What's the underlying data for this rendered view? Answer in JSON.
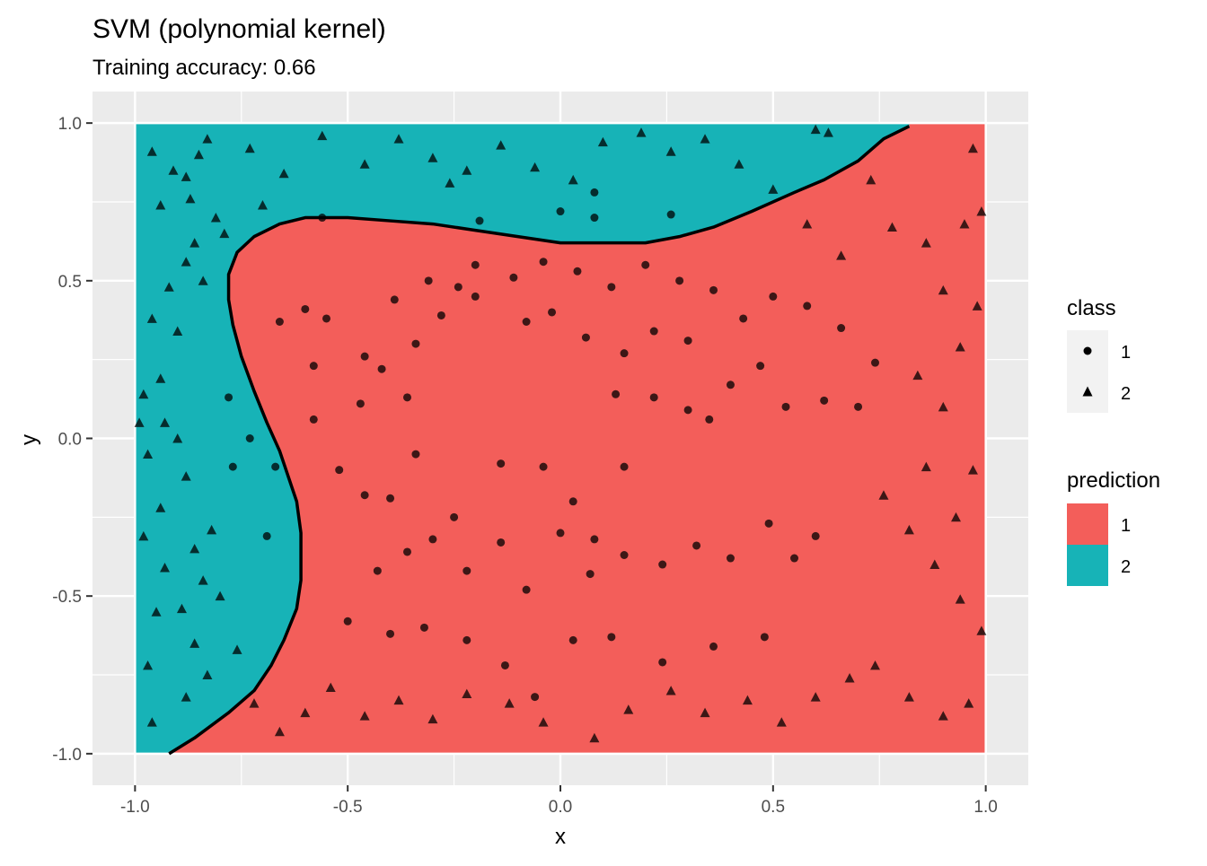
{
  "chart_data": {
    "type": "scatter",
    "title": "SVM (polynomial kernel)",
    "subtitle": "Training accuracy: 0.66",
    "xlabel": "x",
    "ylabel": "y",
    "xlim": [
      -1.1,
      1.1
    ],
    "ylim": [
      -1.1,
      1.1
    ],
    "xticks": [
      -1.0,
      -0.5,
      0.0,
      0.5,
      1.0
    ],
    "xtick_labels": [
      "-1.0",
      "-0.5",
      "0.0",
      "0.5",
      "1.0"
    ],
    "yticks": [
      -1.0,
      -0.5,
      0.0,
      0.5,
      1.0
    ],
    "ytick_labels": [
      "-1.0",
      "-0.5",
      "0.0",
      "0.5",
      "1.0"
    ],
    "grid": true,
    "legend_position": "right",
    "legends": {
      "class": {
        "title": "class",
        "entries": [
          {
            "label": "1",
            "shape": "circle"
          },
          {
            "label": "2",
            "shape": "triangle"
          }
        ]
      },
      "prediction": {
        "title": "prediction",
        "entries": [
          {
            "label": "1",
            "color": "#F35E5A"
          },
          {
            "label": "2",
            "color": "#17B3B7"
          }
        ]
      }
    },
    "colors": {
      "prediction_1": "#F35E5A",
      "prediction_2": "#17B3B7",
      "panel_background": "#EBEBEB",
      "grid": "#FFFFFF",
      "points": "#000000"
    },
    "decision_boundary": [
      [
        -0.92,
        -1.0
      ],
      [
        -0.86,
        -0.95
      ],
      [
        -0.78,
        -0.87
      ],
      [
        -0.72,
        -0.8
      ],
      [
        -0.68,
        -0.72
      ],
      [
        -0.65,
        -0.64
      ],
      [
        -0.62,
        -0.54
      ],
      [
        -0.61,
        -0.45
      ],
      [
        -0.61,
        -0.3
      ],
      [
        -0.62,
        -0.2
      ],
      [
        -0.64,
        -0.12
      ],
      [
        -0.66,
        -0.04
      ],
      [
        -0.69,
        0.05
      ],
      [
        -0.72,
        0.15
      ],
      [
        -0.75,
        0.26
      ],
      [
        -0.77,
        0.36
      ],
      [
        -0.78,
        0.44
      ],
      [
        -0.78,
        0.52
      ],
      [
        -0.76,
        0.59
      ],
      [
        -0.72,
        0.64
      ],
      [
        -0.66,
        0.68
      ],
      [
        -0.6,
        0.7
      ],
      [
        -0.5,
        0.7
      ],
      [
        -0.4,
        0.69
      ],
      [
        -0.3,
        0.68
      ],
      [
        -0.2,
        0.66
      ],
      [
        -0.1,
        0.64
      ],
      [
        0.0,
        0.62
      ],
      [
        0.1,
        0.62
      ],
      [
        0.2,
        0.62
      ],
      [
        0.28,
        0.64
      ],
      [
        0.36,
        0.67
      ],
      [
        0.45,
        0.72
      ],
      [
        0.55,
        0.78
      ],
      [
        0.62,
        0.82
      ],
      [
        0.7,
        0.88
      ],
      [
        0.76,
        0.95
      ],
      [
        0.82,
        0.99
      ]
    ],
    "series": [
      {
        "name": "1",
        "shape": "circle",
        "points": [
          [
            -0.66,
            0.37
          ],
          [
            -0.6,
            0.41
          ],
          [
            -0.55,
            0.38
          ],
          [
            -0.58,
            0.23
          ],
          [
            -0.46,
            0.26
          ],
          [
            -0.42,
            0.22
          ],
          [
            -0.34,
            0.3
          ],
          [
            -0.39,
            0.44
          ],
          [
            -0.31,
            0.5
          ],
          [
            -0.24,
            0.48
          ],
          [
            -0.28,
            0.39
          ],
          [
            -0.2,
            0.45
          ],
          [
            -0.36,
            0.13
          ],
          [
            -0.47,
            0.11
          ],
          [
            -0.58,
            0.06
          ],
          [
            -0.52,
            -0.1
          ],
          [
            -0.46,
            -0.18
          ],
          [
            -0.4,
            -0.19
          ],
          [
            -0.34,
            -0.05
          ],
          [
            -0.25,
            -0.25
          ],
          [
            -0.14,
            -0.08
          ],
          [
            -0.04,
            -0.09
          ],
          [
            0.03,
            -0.2
          ],
          [
            0.08,
            -0.32
          ],
          [
            0.15,
            -0.09
          ],
          [
            0.13,
            0.14
          ],
          [
            0.22,
            0.13
          ],
          [
            0.3,
            0.09
          ],
          [
            0.35,
            0.06
          ],
          [
            0.4,
            0.17
          ],
          [
            0.47,
            0.23
          ],
          [
            0.53,
            0.1
          ],
          [
            0.62,
            0.12
          ],
          [
            0.7,
            0.1
          ],
          [
            0.74,
            0.24
          ],
          [
            0.66,
            0.35
          ],
          [
            0.58,
            0.42
          ],
          [
            0.5,
            0.45
          ],
          [
            0.43,
            0.38
          ],
          [
            0.36,
            0.47
          ],
          [
            0.28,
            0.5
          ],
          [
            0.2,
            0.55
          ],
          [
            0.12,
            0.48
          ],
          [
            0.04,
            0.53
          ],
          [
            -0.04,
            0.56
          ],
          [
            -0.11,
            0.51
          ],
          [
            -0.08,
            0.37
          ],
          [
            -0.02,
            0.4
          ],
          [
            0.06,
            0.32
          ],
          [
            0.15,
            0.27
          ],
          [
            0.22,
            0.34
          ],
          [
            0.3,
            0.31
          ],
          [
            -0.43,
            -0.42
          ],
          [
            -0.36,
            -0.36
          ],
          [
            -0.3,
            -0.32
          ],
          [
            -0.22,
            -0.42
          ],
          [
            -0.14,
            -0.33
          ],
          [
            -0.08,
            -0.48
          ],
          [
            0.0,
            -0.3
          ],
          [
            0.07,
            -0.43
          ],
          [
            0.15,
            -0.37
          ],
          [
            0.24,
            -0.4
          ],
          [
            0.32,
            -0.34
          ],
          [
            0.4,
            -0.38
          ],
          [
            0.49,
            -0.27
          ],
          [
            0.55,
            -0.38
          ],
          [
            0.6,
            -0.31
          ],
          [
            -0.5,
            -0.58
          ],
          [
            -0.4,
            -0.62
          ],
          [
            -0.32,
            -0.6
          ],
          [
            -0.22,
            -0.64
          ],
          [
            -0.13,
            -0.72
          ],
          [
            -0.06,
            -0.82
          ],
          [
            0.03,
            -0.64
          ],
          [
            0.12,
            -0.63
          ],
          [
            0.24,
            -0.71
          ],
          [
            0.36,
            -0.66
          ],
          [
            0.48,
            -0.63
          ],
          [
            -0.2,
            0.55
          ],
          [
            -0.56,
            0.7
          ],
          [
            0.08,
            0.7
          ],
          [
            0.26,
            0.71
          ],
          [
            0.0,
            0.72
          ],
          [
            0.08,
            0.78
          ],
          [
            -0.19,
            0.69
          ],
          [
            -0.78,
            0.13
          ],
          [
            -0.77,
            -0.09
          ],
          [
            -0.69,
            -0.31
          ],
          [
            -0.67,
            -0.09
          ],
          [
            -0.73,
            0.0
          ]
        ]
      },
      {
        "name": "2",
        "shape": "triangle",
        "points": [
          [
            -0.96,
            0.91
          ],
          [
            -0.91,
            0.85
          ],
          [
            -0.94,
            0.74
          ],
          [
            -0.88,
            0.83
          ],
          [
            -0.85,
            0.9
          ],
          [
            -0.83,
            0.95
          ],
          [
            -0.87,
            0.76
          ],
          [
            -0.81,
            0.7
          ],
          [
            -0.79,
            0.65
          ],
          [
            -0.86,
            0.62
          ],
          [
            -0.84,
            0.5
          ],
          [
            -0.88,
            0.56
          ],
          [
            -0.92,
            0.48
          ],
          [
            -0.96,
            0.38
          ],
          [
            -0.9,
            0.34
          ],
          [
            -0.94,
            0.19
          ],
          [
            -0.98,
            0.14
          ],
          [
            -0.93,
            0.05
          ],
          [
            -0.99,
            0.05
          ],
          [
            -0.97,
            -0.05
          ],
          [
            -0.9,
            0.0
          ],
          [
            -0.88,
            -0.12
          ],
          [
            -0.94,
            -0.22
          ],
          [
            -0.98,
            -0.31
          ],
          [
            -0.93,
            -0.41
          ],
          [
            -0.86,
            -0.35
          ],
          [
            -0.82,
            -0.29
          ],
          [
            -0.84,
            -0.45
          ],
          [
            -0.89,
            -0.54
          ],
          [
            -0.95,
            -0.55
          ],
          [
            -0.97,
            -0.72
          ],
          [
            -0.86,
            -0.65
          ],
          [
            -0.8,
            -0.5
          ],
          [
            -0.76,
            -0.67
          ],
          [
            -0.83,
            -0.75
          ],
          [
            -0.88,
            -0.82
          ],
          [
            -0.96,
            -0.9
          ],
          [
            -0.72,
            -0.84
          ],
          [
            -0.66,
            -0.93
          ],
          [
            -0.6,
            -0.87
          ],
          [
            -0.54,
            -0.79
          ],
          [
            -0.46,
            -0.88
          ],
          [
            -0.38,
            -0.83
          ],
          [
            -0.3,
            -0.89
          ],
          [
            -0.22,
            -0.81
          ],
          [
            -0.12,
            -0.84
          ],
          [
            -0.04,
            -0.9
          ],
          [
            0.08,
            -0.95
          ],
          [
            0.16,
            -0.86
          ],
          [
            0.26,
            -0.8
          ],
          [
            0.34,
            -0.87
          ],
          [
            0.44,
            -0.83
          ],
          [
            0.52,
            -0.9
          ],
          [
            0.6,
            -0.82
          ],
          [
            0.68,
            -0.76
          ],
          [
            0.74,
            -0.72
          ],
          [
            0.82,
            -0.82
          ],
          [
            0.9,
            -0.88
          ],
          [
            0.96,
            -0.84
          ],
          [
            0.99,
            -0.61
          ],
          [
            0.94,
            -0.51
          ],
          [
            0.88,
            -0.4
          ],
          [
            0.82,
            -0.29
          ],
          [
            0.76,
            -0.18
          ],
          [
            0.86,
            -0.09
          ],
          [
            0.93,
            -0.25
          ],
          [
            0.97,
            -0.1
          ],
          [
            0.9,
            0.1
          ],
          [
            0.84,
            0.2
          ],
          [
            0.94,
            0.29
          ],
          [
            0.98,
            0.42
          ],
          [
            0.9,
            0.47
          ],
          [
            0.86,
            0.62
          ],
          [
            0.95,
            0.68
          ],
          [
            0.99,
            0.72
          ],
          [
            0.97,
            0.92
          ],
          [
            0.78,
            0.67
          ],
          [
            0.66,
            0.58
          ],
          [
            0.58,
            0.68
          ],
          [
            0.5,
            0.79
          ],
          [
            0.42,
            0.87
          ],
          [
            0.34,
            0.95
          ],
          [
            0.26,
            0.91
          ],
          [
            0.19,
            0.97
          ],
          [
            0.1,
            0.94
          ],
          [
            0.03,
            0.82
          ],
          [
            -0.06,
            0.86
          ],
          [
            -0.14,
            0.93
          ],
          [
            -0.22,
            0.85
          ],
          [
            -0.3,
            0.89
          ],
          [
            -0.38,
            0.95
          ],
          [
            -0.46,
            0.87
          ],
          [
            -0.56,
            0.96
          ],
          [
            -0.65,
            0.84
          ],
          [
            -0.73,
            0.92
          ],
          [
            -0.7,
            0.74
          ],
          [
            -0.26,
            0.81
          ],
          [
            0.6,
            0.98
          ],
          [
            0.63,
            0.97
          ],
          [
            0.73,
            0.82
          ]
        ]
      }
    ]
  }
}
